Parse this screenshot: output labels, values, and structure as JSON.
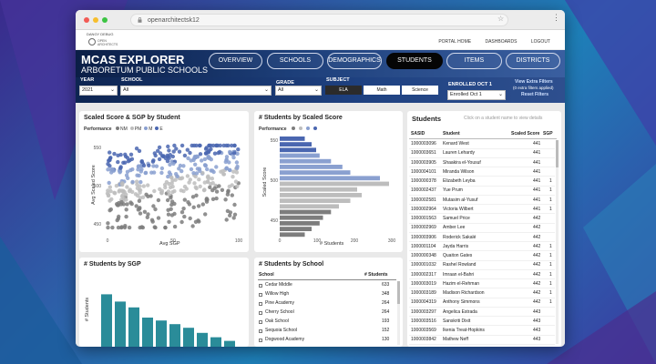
{
  "browser": {
    "url": "openarchitectsk12",
    "dot_colors": [
      "#f25b55",
      "#f7be2d",
      "#3cc443"
    ]
  },
  "app": {
    "debug_label": "DANGY DEBUG",
    "logo_text_line1": "OPEN",
    "logo_text_line2": "ARCHITECTS",
    "top_links": [
      "PORTAL HOME",
      "DASHBOARDS",
      "LOGOUT"
    ],
    "title": "MCAS EXPLORER",
    "subtitle": "ARBORETUM PUBLIC SCHOOLS",
    "nav": [
      {
        "label": "OVERVIEW",
        "active": false
      },
      {
        "label": "SCHOOLS",
        "active": false
      },
      {
        "label": "DEMOGRAPHICS",
        "active": false
      },
      {
        "label": "STUDENTS",
        "active": true
      },
      {
        "label": "ITEMS",
        "active": false
      },
      {
        "label": "DISTRICTS",
        "active": false
      }
    ]
  },
  "filters": {
    "year_label": "YEAR",
    "year_value": "2021",
    "school_label": "SCHOOL",
    "school_value": "All",
    "grade_label": "GRADE",
    "grade_value": "All",
    "subject_label": "SUBJECT",
    "subjects": [
      {
        "label": "ELA",
        "active": true
      },
      {
        "label": "Math",
        "active": false
      },
      {
        "label": "Science",
        "active": false
      }
    ],
    "enrolled_label": "ENROLLED OCT 1",
    "enrolled_value": "Enrolled Oct 1",
    "view_extra": "View Extra Filters",
    "extra_applied": "(0 extra filters applied)",
    "reset": "Reset Filters"
  },
  "scatter": {
    "title": "Scaled Score & SGP by Student",
    "legend_label": "Performance",
    "legend_items": [
      {
        "label": "NM",
        "color": "#7d7d7d"
      },
      {
        "label": "PM",
        "color": "#bdbdbd"
      },
      {
        "label": "M",
        "color": "#8aa0d0"
      },
      {
        "label": "E",
        "color": "#4a66b0"
      }
    ],
    "xlabel": "Avg SGP",
    "ylabel": "Avg Scaled Score",
    "x_ticks": [
      "0",
      "50",
      "100"
    ],
    "y_ticks": [
      "550",
      "500",
      "450"
    ]
  },
  "bars_score": {
    "title": "# Students by Scaled Score",
    "legend_label": "Performance",
    "legend_colors": [
      "#7d7d7d",
      "#bdbdbd",
      "#8aa0d0",
      "#4a66b0"
    ],
    "xlabel": "# Students",
    "ylabel": "Scaled Score",
    "x_ticks": [
      "0",
      "100",
      "200",
      "300"
    ],
    "y_ticks": [
      "550",
      "500",
      "450"
    ]
  },
  "bars_sgp": {
    "title": "# Students by SGP",
    "ylabel": "# Students",
    "bar_color": "#2a8c99"
  },
  "schools_table": {
    "title": "# Students by School",
    "col_school": "School",
    "col_students": "# Students",
    "rows": [
      {
        "school": "Cedar Middle",
        "students": "633"
      },
      {
        "school": "Willow High",
        "students": "348"
      },
      {
        "school": "Pine Academy",
        "students": "264"
      },
      {
        "school": "Cherry School",
        "students": "264"
      },
      {
        "school": "Oak School",
        "students": "193"
      },
      {
        "school": "Sequoia School",
        "students": "152"
      },
      {
        "school": "Dogwood Academy",
        "students": "130"
      }
    ]
  },
  "students_table": {
    "title": "Students",
    "hint": "Click on a student name to view details",
    "col_sasid": "SASID",
    "col_student": "Student",
    "col_score": "Scaled Score",
    "col_sgp": "SGP",
    "rows": [
      {
        "sasid": "1000003096",
        "student": "Kenard West",
        "score": "441",
        "sgp": ""
      },
      {
        "sasid": "1000003651",
        "student": "Lauren Lehardy",
        "score": "441",
        "sgp": ""
      },
      {
        "sasid": "1000003905",
        "student": "Shaakira el-Yousuf",
        "score": "441",
        "sgp": ""
      },
      {
        "sasid": "1000004101",
        "student": "Miranda Wilson",
        "score": "441",
        "sgp": ""
      },
      {
        "sasid": "1000000378",
        "student": "Elizabeth Leyba",
        "score": "441",
        "sgp": "1"
      },
      {
        "sasid": "1000002437",
        "student": "Yue Prum",
        "score": "441",
        "sgp": "1"
      },
      {
        "sasid": "1000002581",
        "student": "Mutasim al-Yusuf",
        "score": "441",
        "sgp": "1"
      },
      {
        "sasid": "1000002964",
        "student": "Victoria Wilbert",
        "score": "441",
        "sgp": "1"
      },
      {
        "sasid": "1000001563",
        "student": "Samuel Price",
        "score": "442",
        "sgp": ""
      },
      {
        "sasid": "1000002969",
        "student": "Amber Lee",
        "score": "442",
        "sgp": ""
      },
      {
        "sasid": "1000003906",
        "student": "Roderick Sakalé",
        "score": "442",
        "sgp": ""
      },
      {
        "sasid": "1000001104",
        "student": "Jayda Harris",
        "score": "442",
        "sgp": "1"
      },
      {
        "sasid": "1000000348",
        "student": "Quaiton Gates",
        "score": "442",
        "sgp": "1"
      },
      {
        "sasid": "1000001032",
        "student": "Rashel Rowland",
        "score": "442",
        "sgp": "1"
      },
      {
        "sasid": "1000002317",
        "student": "Imraan el-Bahri",
        "score": "442",
        "sgp": "1"
      },
      {
        "sasid": "1000003019",
        "student": "Hazim el-Rehman",
        "score": "442",
        "sgp": "1"
      },
      {
        "sasid": "1000003189",
        "student": "Madison Richardson",
        "score": "442",
        "sgp": "1"
      },
      {
        "sasid": "1000004319",
        "student": "Anthony Simmons",
        "score": "442",
        "sgp": "1"
      },
      {
        "sasid": "1000003297",
        "student": "Angelica Estrada",
        "score": "443",
        "sgp": ""
      },
      {
        "sasid": "1000003516",
        "student": "Sanskriti Dixit",
        "score": "443",
        "sgp": ""
      },
      {
        "sasid": "1000003569",
        "student": "Ikenia Treat-Hopkins",
        "score": "443",
        "sgp": ""
      },
      {
        "sasid": "1000003842",
        "student": "Mathew Neff",
        "score": "443",
        "sgp": ""
      }
    ]
  }
}
